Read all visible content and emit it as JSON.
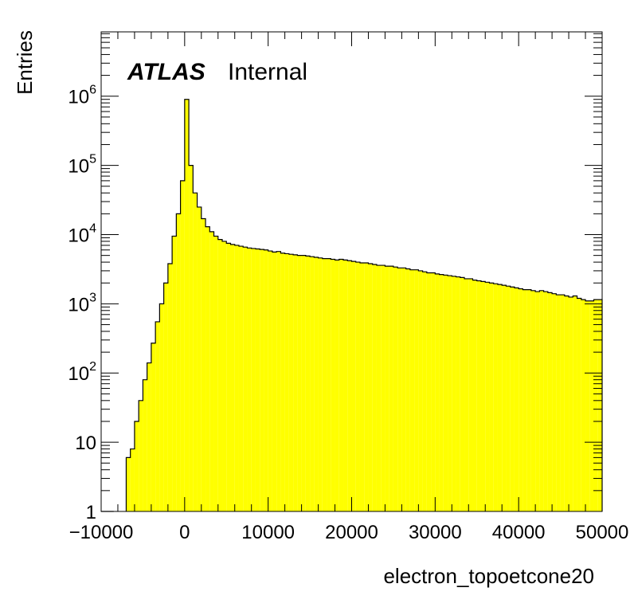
{
  "chart_data": {
    "type": "bar",
    "histogram": true,
    "xlabel": "electron_topoetcone20",
    "ylabel": "Entries",
    "xlim": [
      -10000,
      50000
    ],
    "ylim": [
      1,
      8500000
    ],
    "log_y": true,
    "bin_width": 500,
    "fill_color": "#ffff00",
    "line_color": "#000000",
    "x_tick_labels": [
      "−10000",
      "0",
      "10000",
      "20000",
      "30000",
      "40000",
      "50000"
    ],
    "x_tick_values": [
      -10000,
      0,
      10000,
      20000,
      30000,
      40000,
      50000
    ],
    "y_tick_values": [
      1,
      10,
      100,
      1000,
      10000,
      100000,
      1000000
    ],
    "y_tick_labels": [
      {
        "base": "1",
        "exp": ""
      },
      {
        "base": "10",
        "exp": ""
      },
      {
        "base": "10",
        "exp": "2"
      },
      {
        "base": "10",
        "exp": "3"
      },
      {
        "base": "10",
        "exp": "4"
      },
      {
        "base": "10",
        "exp": "5"
      },
      {
        "base": "10",
        "exp": "6"
      }
    ],
    "atlas_label": "ATLAS",
    "atlas_sublabel": "Internal",
    "bins": [
      {
        "x": -10000,
        "y": 1
      },
      {
        "x": -9500,
        "y": 1
      },
      {
        "x": -9000,
        "y": 1
      },
      {
        "x": -7000,
        "y": 6
      },
      {
        "x": -6500,
        "y": 8
      },
      {
        "x": -6000,
        "y": 20
      },
      {
        "x": -5500,
        "y": 40
      },
      {
        "x": -5000,
        "y": 80
      },
      {
        "x": -4500,
        "y": 140
      },
      {
        "x": -4000,
        "y": 270
      },
      {
        "x": -3500,
        "y": 550
      },
      {
        "x": -3000,
        "y": 1000
      },
      {
        "x": -2500,
        "y": 2000
      },
      {
        "x": -2000,
        "y": 3800
      },
      {
        "x": -1500,
        "y": 9500
      },
      {
        "x": -1000,
        "y": 20000
      },
      {
        "x": -500,
        "y": 60000
      },
      {
        "x": 0,
        "y": 900000
      },
      {
        "x": 500,
        "y": 100000
      },
      {
        "x": 1000,
        "y": 40000
      },
      {
        "x": 1500,
        "y": 25000
      },
      {
        "x": 2000,
        "y": 17000
      },
      {
        "x": 2500,
        "y": 13000
      },
      {
        "x": 3000,
        "y": 11000
      },
      {
        "x": 3500,
        "y": 9500
      },
      {
        "x": 4000,
        "y": 8500
      },
      {
        "x": 4500,
        "y": 8000
      },
      {
        "x": 5000,
        "y": 7500
      },
      {
        "x": 5500,
        "y": 7200
      },
      {
        "x": 6000,
        "y": 7000
      },
      {
        "x": 6500,
        "y": 6800
      },
      {
        "x": 7000,
        "y": 6600
      },
      {
        "x": 7500,
        "y": 6400
      },
      {
        "x": 8000,
        "y": 6300
      },
      {
        "x": 8500,
        "y": 6200
      },
      {
        "x": 9000,
        "y": 6100
      },
      {
        "x": 9500,
        "y": 6000
      },
      {
        "x": 10000,
        "y": 5800
      },
      {
        "x": 10500,
        "y": 5600
      },
      {
        "x": 11000,
        "y": 5700
      },
      {
        "x": 11500,
        "y": 5400
      },
      {
        "x": 12000,
        "y": 5300
      },
      {
        "x": 12500,
        "y": 5200
      },
      {
        "x": 13000,
        "y": 5100
      },
      {
        "x": 13500,
        "y": 5000
      },
      {
        "x": 14000,
        "y": 5000
      },
      {
        "x": 14500,
        "y": 4900
      },
      {
        "x": 15000,
        "y": 4800
      },
      {
        "x": 15500,
        "y": 4700
      },
      {
        "x": 16000,
        "y": 4600
      },
      {
        "x": 16500,
        "y": 4500
      },
      {
        "x": 17000,
        "y": 4500
      },
      {
        "x": 17500,
        "y": 4400
      },
      {
        "x": 18000,
        "y": 4300
      },
      {
        "x": 18500,
        "y": 4400
      },
      {
        "x": 19000,
        "y": 4300
      },
      {
        "x": 19500,
        "y": 4200
      },
      {
        "x": 20000,
        "y": 4100
      },
      {
        "x": 20500,
        "y": 4000
      },
      {
        "x": 21000,
        "y": 3900
      },
      {
        "x": 21500,
        "y": 3900
      },
      {
        "x": 22000,
        "y": 3800
      },
      {
        "x": 22500,
        "y": 3700
      },
      {
        "x": 23000,
        "y": 3600
      },
      {
        "x": 23500,
        "y": 3600
      },
      {
        "x": 24000,
        "y": 3500
      },
      {
        "x": 24500,
        "y": 3500
      },
      {
        "x": 25000,
        "y": 3400
      },
      {
        "x": 25500,
        "y": 3300
      },
      {
        "x": 26000,
        "y": 3300
      },
      {
        "x": 26500,
        "y": 3200
      },
      {
        "x": 27000,
        "y": 3100
      },
      {
        "x": 27500,
        "y": 3100
      },
      {
        "x": 28000,
        "y": 3000
      },
      {
        "x": 28500,
        "y": 2900
      },
      {
        "x": 29000,
        "y": 2800
      },
      {
        "x": 29500,
        "y": 2800
      },
      {
        "x": 30000,
        "y": 2700
      },
      {
        "x": 30500,
        "y": 2650
      },
      {
        "x": 31000,
        "y": 2600
      },
      {
        "x": 31500,
        "y": 2550
      },
      {
        "x": 32000,
        "y": 2500
      },
      {
        "x": 32500,
        "y": 2450
      },
      {
        "x": 33000,
        "y": 2400
      },
      {
        "x": 33500,
        "y": 2300
      },
      {
        "x": 34000,
        "y": 2300
      },
      {
        "x": 34500,
        "y": 2200
      },
      {
        "x": 35000,
        "y": 2150
      },
      {
        "x": 35500,
        "y": 2100
      },
      {
        "x": 36000,
        "y": 2050
      },
      {
        "x": 36500,
        "y": 2000
      },
      {
        "x": 37000,
        "y": 1950
      },
      {
        "x": 37500,
        "y": 1900
      },
      {
        "x": 38000,
        "y": 1850
      },
      {
        "x": 38500,
        "y": 1800
      },
      {
        "x": 39000,
        "y": 1750
      },
      {
        "x": 39500,
        "y": 1700
      },
      {
        "x": 40000,
        "y": 1650
      },
      {
        "x": 40500,
        "y": 1600
      },
      {
        "x": 41000,
        "y": 1600
      },
      {
        "x": 41500,
        "y": 1550
      },
      {
        "x": 42000,
        "y": 1500
      },
      {
        "x": 42500,
        "y": 1550
      },
      {
        "x": 43000,
        "y": 1500
      },
      {
        "x": 43500,
        "y": 1450
      },
      {
        "x": 44000,
        "y": 1400
      },
      {
        "x": 44500,
        "y": 1350
      },
      {
        "x": 45000,
        "y": 1350
      },
      {
        "x": 45500,
        "y": 1300
      },
      {
        "x": 46000,
        "y": 1250
      },
      {
        "x": 46500,
        "y": 1300
      },
      {
        "x": 47000,
        "y": 1200
      },
      {
        "x": 47500,
        "y": 1150
      },
      {
        "x": 48000,
        "y": 1100
      },
      {
        "x": 48500,
        "y": 1100
      },
      {
        "x": 49000,
        "y": 1150
      },
      {
        "x": 49500,
        "y": 1150
      }
    ]
  }
}
